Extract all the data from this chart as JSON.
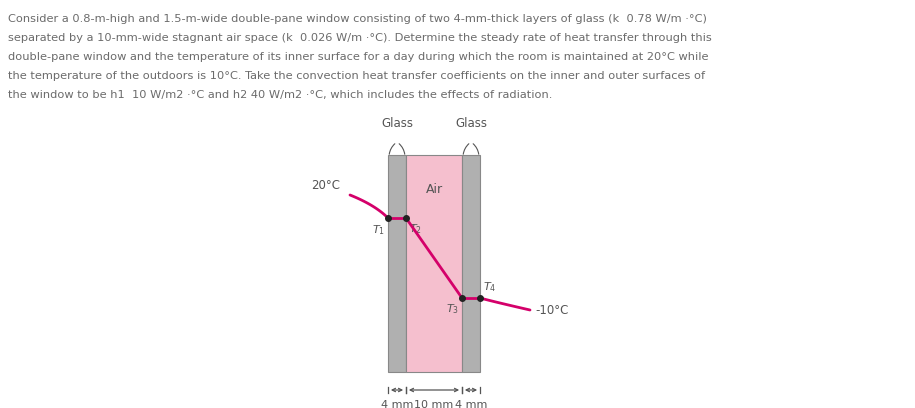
{
  "text_color": "#6B6B6B",
  "bg_color": "#FFFFFF",
  "glass_color": "#B0B0B0",
  "air_color": "#F5BFCE",
  "fig_width": 9.15,
  "fig_height": 4.08,
  "paragraph_lines": [
    "Consider a 0.8-m-high and 1.5-m-wide double-pane window consisting of two 4-mm-thick layers of glass (k  0.78 W/m ·°C)",
    "separated by a 10-mm-wide stagnant air space (k  0.026 W/m ·°C). Determine the steady rate of heat transfer through this",
    "double-pane window and the temperature of its inner surface for a day during which the room is maintained at 20°C while",
    "the temperature of the outdoors is 10°C. Take the convection heat transfer coefficients on the inner and outer surfaces of",
    "the window to be h1  10 W/m2 ·°C and h2 40 W/m2 ·°C, which includes the effects of radiation."
  ],
  "line_color": "#D4006A",
  "dot_color": "#222222",
  "label_color": "#555555",
  "dim_color": "#555555"
}
